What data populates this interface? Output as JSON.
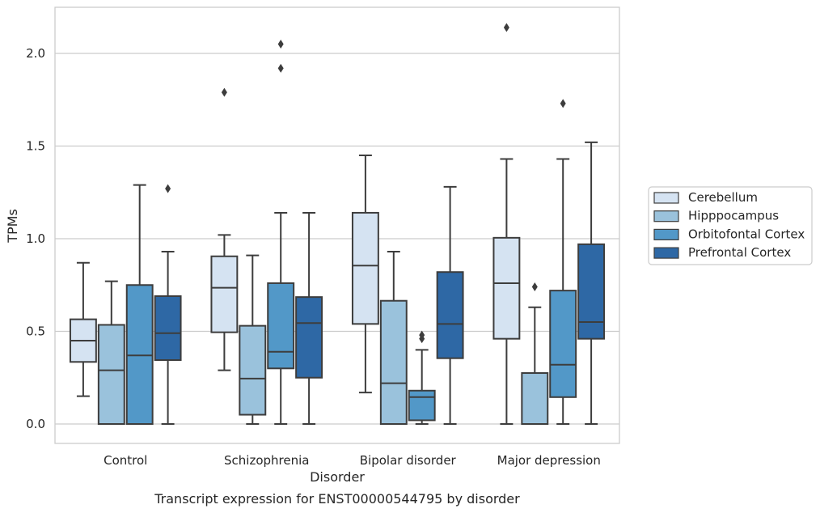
{
  "chart_data": {
    "type": "box",
    "title": "",
    "caption": "Transcript expression for ENST00000544795 by disorder",
    "xlabel": "Disorder",
    "ylabel": "TPMs",
    "ylim": [
      -0.1,
      2.25
    ],
    "yticks": [
      "0.0",
      "0.5",
      "1.0",
      "1.5",
      "2.0"
    ],
    "grid": true,
    "legend_position": "right",
    "categories": [
      "Control",
      "Schizophrenia",
      "Bipolar disorder",
      "Major depression"
    ],
    "series": [
      {
        "name": "Cerebellum",
        "color": "#d5e3f2",
        "boxes": [
          {
            "whislo": 0.15,
            "q1": 0.335,
            "med": 0.45,
            "q3": 0.565,
            "whishi": 0.87,
            "fliers": []
          },
          {
            "whislo": 0.29,
            "q1": 0.495,
            "med": 0.735,
            "q3": 0.905,
            "whishi": 1.02,
            "fliers": [
              1.79
            ]
          },
          {
            "whislo": 0.17,
            "q1": 0.54,
            "med": 0.855,
            "q3": 1.14,
            "whishi": 1.45,
            "fliers": []
          },
          {
            "whislo": 0.0,
            "q1": 0.46,
            "med": 0.76,
            "q3": 1.005,
            "whishi": 1.43,
            "fliers": [
              2.14
            ]
          }
        ]
      },
      {
        "name": "Hipppocampus",
        "color": "#9ac2dc",
        "boxes": [
          {
            "whislo": 0.0,
            "q1": 0.0,
            "med": 0.29,
            "q3": 0.535,
            "whishi": 0.77,
            "fliers": []
          },
          {
            "whislo": 0.0,
            "q1": 0.05,
            "med": 0.245,
            "q3": 0.53,
            "whishi": 0.91,
            "fliers": []
          },
          {
            "whislo": 0.0,
            "q1": 0.0,
            "med": 0.22,
            "q3": 0.665,
            "whishi": 0.93,
            "fliers": []
          },
          {
            "whislo": 0.0,
            "q1": 0.0,
            "med": 0.0,
            "q3": 0.275,
            "whishi": 0.63,
            "fliers": [
              0.74
            ]
          }
        ]
      },
      {
        "name": "Orbitofontal Cortex",
        "color": "#5298c8",
        "boxes": [
          {
            "whislo": 0.0,
            "q1": 0.0,
            "med": 0.37,
            "q3": 0.75,
            "whishi": 1.29,
            "fliers": []
          },
          {
            "whislo": 0.0,
            "q1": 0.3,
            "med": 0.39,
            "q3": 0.76,
            "whishi": 1.14,
            "fliers": [
              1.92,
              2.05
            ]
          },
          {
            "whislo": 0.0,
            "q1": 0.02,
            "med": 0.145,
            "q3": 0.18,
            "whishi": 0.4,
            "fliers": [
              0.46,
              0.48
            ]
          },
          {
            "whislo": 0.0,
            "q1": 0.145,
            "med": 0.32,
            "q3": 0.72,
            "whishi": 1.43,
            "fliers": [
              1.73
            ]
          }
        ]
      },
      {
        "name": "Prefrontal Cortex",
        "color": "#2e68a5",
        "boxes": [
          {
            "whislo": 0.0,
            "q1": 0.345,
            "med": 0.49,
            "q3": 0.69,
            "whishi": 0.93,
            "fliers": [
              1.27
            ]
          },
          {
            "whislo": 0.0,
            "q1": 0.25,
            "med": 0.545,
            "q3": 0.685,
            "whishi": 1.14,
            "fliers": []
          },
          {
            "whislo": 0.0,
            "q1": 0.355,
            "med": 0.54,
            "q3": 0.82,
            "whishi": 1.28,
            "fliers": []
          },
          {
            "whislo": 0.0,
            "q1": 0.46,
            "med": 0.55,
            "q3": 0.97,
            "whishi": 1.52,
            "fliers": []
          }
        ]
      }
    ]
  }
}
